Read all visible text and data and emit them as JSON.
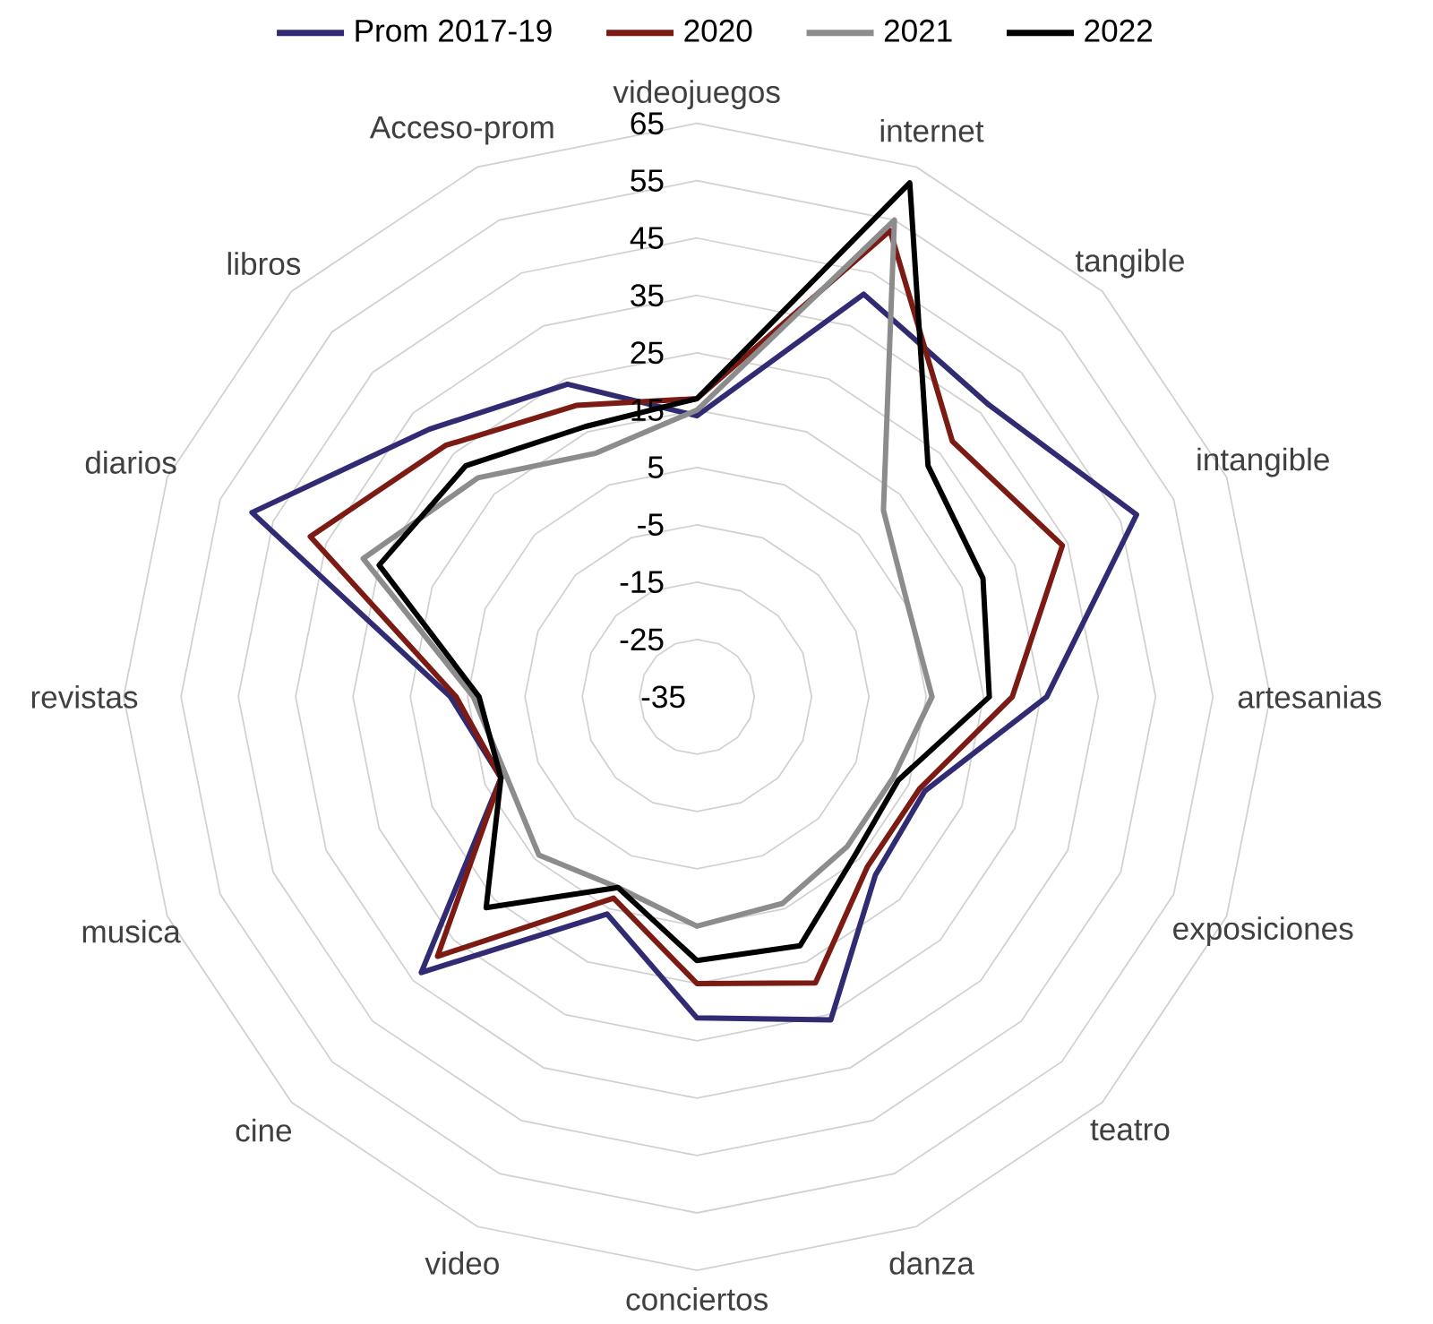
{
  "chart_data": {
    "type": "radar",
    "categories": [
      "videojuegos",
      "internet",
      "tangible",
      "intangible",
      "artesanias",
      "exposiciones",
      "teatro",
      "danza",
      "conciertos",
      "video",
      "cine",
      "musica",
      "revistas",
      "diarios",
      "libros",
      "Acceso-prom"
    ],
    "series": [
      {
        "name": "Prom 2017-19",
        "color": "#312b73",
        "values": [
          14,
          41,
          37,
          48,
          26,
          8,
          9,
          26,
          21,
          6,
          33,
          2,
          8,
          49,
          31,
          24
        ]
      },
      {
        "name": "2020",
        "color": "#7b1b13",
        "values": [
          17,
          53,
          28,
          34,
          20,
          7,
          7,
          19,
          15,
          3,
          29,
          2,
          7,
          38,
          27,
          20
        ]
      },
      {
        "name": "2021",
        "color": "#8c8c8c",
        "values": [
          15,
          55,
          11,
          5,
          6,
          2,
          2,
          4,
          5,
          1,
          4,
          1,
          4,
          28,
          19,
          11
        ]
      },
      {
        "name": "2022",
        "color": "#000000",
        "values": [
          17,
          62,
          22,
          19,
          16,
          3,
          4,
          12,
          11,
          1,
          17,
          2,
          3,
          25,
          22,
          16
        ]
      }
    ],
    "ylim": [
      -35,
      65
    ],
    "yticks": [
      -35,
      -25,
      -15,
      -5,
      5,
      15,
      25,
      35,
      45,
      55,
      65
    ],
    "grid": true,
    "legend": "top"
  }
}
